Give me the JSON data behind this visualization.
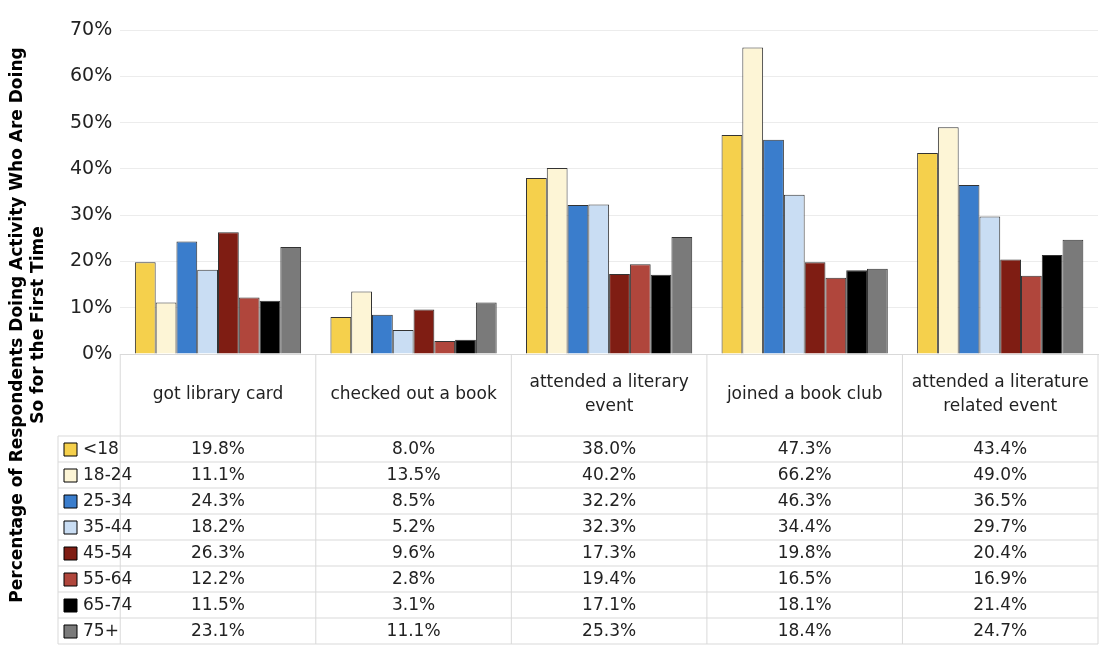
{
  "chart_data": {
    "type": "bar",
    "ylabel": "Percentage of Respondents Doing Activity Who Are Doing So for the First Time",
    "categories": [
      "got library card",
      "checked out a book",
      "attended a literary event",
      "joined a book club",
      "attended a literature related event"
    ],
    "series": [
      {
        "name": "<18",
        "color": "#f5d04c",
        "values": [
          19.8,
          8.0,
          38.0,
          47.3,
          43.4
        ],
        "value_labels": [
          "19.8%",
          "8.0%",
          "38.0%",
          "47.3%",
          "43.4%"
        ]
      },
      {
        "name": "18-24",
        "color": "#fdf5d6",
        "values": [
          11.1,
          13.5,
          40.2,
          66.2,
          49.0
        ],
        "value_labels": [
          "11.1%",
          "13.5%",
          "40.2%",
          "66.2%",
          "49.0%"
        ]
      },
      {
        "name": "25-34",
        "color": "#3a7dcc",
        "values": [
          24.3,
          8.5,
          32.2,
          46.3,
          36.5
        ],
        "value_labels": [
          "24.3%",
          "8.5%",
          "32.2%",
          "46.3%",
          "36.5%"
        ]
      },
      {
        "name": "35-44",
        "color": "#c9ddf3",
        "values": [
          18.2,
          5.2,
          32.3,
          34.4,
          29.7
        ],
        "value_labels": [
          "18.2%",
          "5.2%",
          "32.3%",
          "34.4%",
          "29.7%"
        ]
      },
      {
        "name": "45-54",
        "color": "#7f1d13",
        "values": [
          26.3,
          9.6,
          17.3,
          19.8,
          20.4
        ],
        "value_labels": [
          "26.3%",
          "9.6%",
          "17.3%",
          "19.8%",
          "20.4%"
        ]
      },
      {
        "name": "55-64",
        "color": "#b0463c",
        "values": [
          12.2,
          2.8,
          19.4,
          16.5,
          16.9
        ],
        "value_labels": [
          "12.2%",
          "2.8%",
          "19.4%",
          "16.5%",
          "16.9%"
        ]
      },
      {
        "name": "65-74",
        "color": "#000000",
        "values": [
          11.5,
          3.1,
          17.1,
          18.1,
          21.4
        ],
        "value_labels": [
          "11.5%",
          "3.1%",
          "17.1%",
          "18.1%",
          "21.4%"
        ]
      },
      {
        "name": "75+",
        "color": "#7a7a7a",
        "values": [
          23.1,
          11.1,
          25.3,
          18.4,
          24.7
        ],
        "value_labels": [
          "23.1%",
          "11.1%",
          "25.3%",
          "18.4%",
          "24.7%"
        ]
      }
    ],
    "ylim": [
      0,
      70
    ],
    "yticks": [
      {
        "value": 0,
        "label": "0%"
      },
      {
        "value": 10,
        "label": "10%"
      },
      {
        "value": 20,
        "label": "20%"
      },
      {
        "value": 30,
        "label": "30%"
      },
      {
        "value": 40,
        "label": "40%"
      },
      {
        "value": 50,
        "label": "50%"
      },
      {
        "value": 60,
        "label": "60%"
      },
      {
        "value": 70,
        "label": "70%"
      }
    ],
    "grid": "y",
    "legend": "bottom left"
  }
}
